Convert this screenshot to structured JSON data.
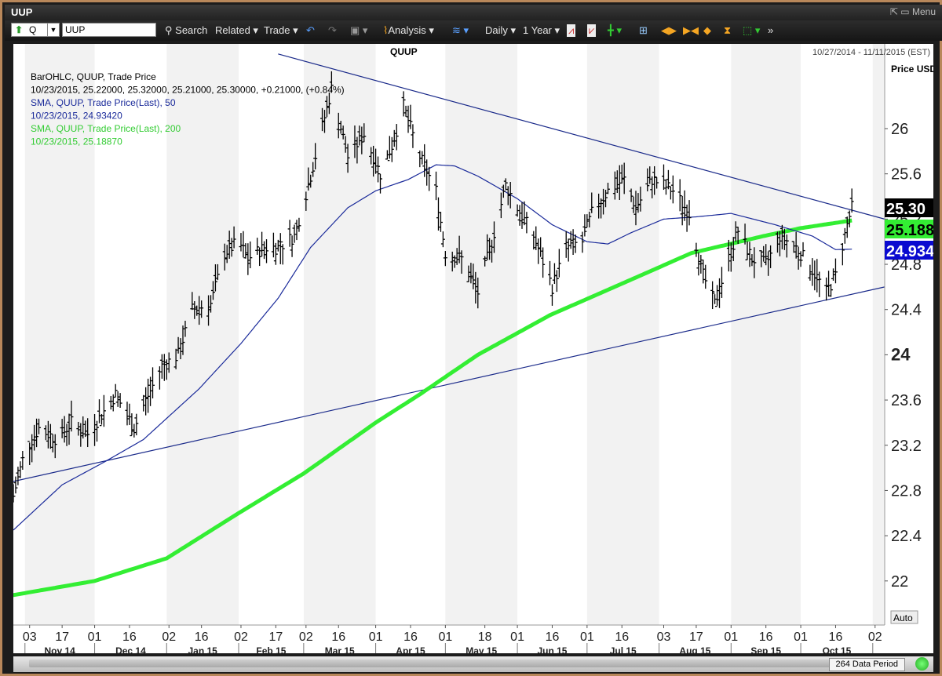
{
  "window": {
    "title": "UUP",
    "menu_label": "Menu"
  },
  "toolbar": {
    "symbol_prefix": "Q",
    "symbol_value": "UUP",
    "search": "Search",
    "related": "Related",
    "trade": "Trade",
    "analysis": "Analysis",
    "interval": "Daily",
    "range": "1 Year"
  },
  "status": {
    "data_period": "264 Data Period"
  },
  "colors": {
    "bars": "#000000",
    "sma50": "#1a2a9a",
    "sma200": "#33ee33",
    "trendline": "#1a2a8a",
    "band": "#f2f2f2"
  },
  "chart_data": {
    "type": "line",
    "title": "QUUP",
    "date_range": "10/27/2014 - 11/11/2015 (EST)",
    "ylabel": "Price USD",
    "auto_label": "Auto",
    "ylim": [
      21.6,
      26.6
    ],
    "yticks": [
      "22",
      "22.4",
      "22.8",
      "23.2",
      "23.6",
      "24",
      "24.4",
      "24.8",
      "25.2",
      "25.6",
      "26"
    ],
    "x_tick_days": [
      "03",
      "17",
      "01",
      "16",
      "02",
      "16",
      "02",
      "17",
      "02",
      "16",
      "01",
      "16",
      "01",
      "18",
      "01",
      "16",
      "01",
      "16",
      "03",
      "17",
      "01",
      "16",
      "01",
      "16",
      "02"
    ],
    "x_month_labels": [
      "Nov 14",
      "Dec 14",
      "Jan 15",
      "Feb 15",
      "Mar 15",
      "Apr 15",
      "May 15",
      "Jun 15",
      "Jul 15",
      "Aug 15",
      "Sep 15",
      "Oct 15"
    ],
    "legend_lines": [
      "BarOHLC, QUUP, Trade Price",
      "10/23/2015, 25.22000, 25.32000, 25.21000, 25.30000, +0.21000, (+0.84%)",
      "SMA, QUUP, Trade Price(Last),  50",
      "10/23/2015, 24.93420",
      "SMA, QUUP, Trade Price(Last),  200",
      "10/23/2015, 25.18870"
    ],
    "price_tags": [
      {
        "label": "25.30",
        "value": 25.3,
        "color": "#000000"
      },
      {
        "label": "25.188",
        "value": 25.188,
        "color": "#33ee33"
      },
      {
        "label": "24.934",
        "value": 24.934,
        "color": "#0a0ad0"
      }
    ],
    "price_anchors": [
      [
        "2014-10-27",
        22.75
      ],
      [
        "2014-11-01",
        23.15
      ],
      [
        "2014-11-07",
        23.35
      ],
      [
        "2014-11-15",
        23.25
      ],
      [
        "2014-11-21",
        23.4
      ],
      [
        "2014-11-28",
        23.3
      ],
      [
        "2014-12-05",
        23.5
      ],
      [
        "2014-12-10",
        23.65
      ],
      [
        "2014-12-18",
        23.35
      ],
      [
        "2014-12-22",
        23.55
      ],
      [
        "2014-12-30",
        23.9
      ],
      [
        "2015-01-06",
        24.0
      ],
      [
        "2015-01-12",
        24.4
      ],
      [
        "2015-01-20",
        24.45
      ],
      [
        "2015-01-26",
        24.9
      ],
      [
        "2015-02-01",
        25.0
      ],
      [
        "2015-02-05",
        24.85
      ],
      [
        "2015-02-12",
        24.95
      ],
      [
        "2015-02-18",
        24.95
      ],
      [
        "2015-02-25",
        25.05
      ],
      [
        "2015-03-03",
        25.5
      ],
      [
        "2015-03-10",
        26.1
      ],
      [
        "2015-03-13",
        26.35
      ],
      [
        "2015-03-20",
        25.75
      ],
      [
        "2015-03-27",
        25.95
      ],
      [
        "2015-04-03",
        25.6
      ],
      [
        "2015-04-08",
        25.85
      ],
      [
        "2015-04-13",
        26.2
      ],
      [
        "2015-04-20",
        25.75
      ],
      [
        "2015-04-27",
        25.45
      ],
      [
        "2015-05-01",
        24.9
      ],
      [
        "2015-05-08",
        24.85
      ],
      [
        "2015-05-15",
        24.55
      ],
      [
        "2015-05-21",
        25.0
      ],
      [
        "2015-05-27",
        25.5
      ],
      [
        "2015-06-01",
        25.3
      ],
      [
        "2015-06-08",
        25.05
      ],
      [
        "2015-06-16",
        24.6
      ],
      [
        "2015-06-22",
        24.95
      ],
      [
        "2015-06-29",
        25.0
      ],
      [
        "2015-07-03",
        25.25
      ],
      [
        "2015-07-10",
        25.45
      ],
      [
        "2015-07-17",
        25.55
      ],
      [
        "2015-07-22",
        25.3
      ],
      [
        "2015-07-29",
        25.55
      ],
      [
        "2015-08-03",
        25.5
      ],
      [
        "2015-08-07",
        25.45
      ],
      [
        "2015-08-14",
        25.25
      ],
      [
        "2015-08-20",
        24.7
      ],
      [
        "2015-08-25",
        24.45
      ],
      [
        "2015-08-31",
        24.85
      ],
      [
        "2015-09-04",
        25.1
      ],
      [
        "2015-09-10",
        24.85
      ],
      [
        "2015-09-16",
        24.8
      ],
      [
        "2015-09-22",
        25.05
      ],
      [
        "2015-09-29",
        24.95
      ],
      [
        "2015-10-06",
        24.75
      ],
      [
        "2015-10-12",
        24.55
      ],
      [
        "2015-10-16",
        24.7
      ],
      [
        "2015-10-21",
        25.15
      ],
      [
        "2015-10-23",
        25.3
      ]
    ],
    "sma50_anchors": [
      [
        "2014-10-27",
        22.45
      ],
      [
        "2014-11-17",
        22.85
      ],
      [
        "2014-12-05",
        23.05
      ],
      [
        "2014-12-22",
        23.25
      ],
      [
        "2015-01-15",
        23.7
      ],
      [
        "2015-02-02",
        24.1
      ],
      [
        "2015-02-18",
        24.5
      ],
      [
        "2015-03-04",
        24.95
      ],
      [
        "2015-03-20",
        25.3
      ],
      [
        "2015-04-01",
        25.45
      ],
      [
        "2015-04-15",
        25.55
      ],
      [
        "2015-04-27",
        25.68
      ],
      [
        "2015-05-05",
        25.67
      ],
      [
        "2015-05-15",
        25.58
      ],
      [
        "2015-06-01",
        25.38
      ],
      [
        "2015-06-16",
        25.15
      ],
      [
        "2015-07-01",
        25.0
      ],
      [
        "2015-07-10",
        24.98
      ],
      [
        "2015-07-20",
        25.08
      ],
      [
        "2015-08-03",
        25.2
      ],
      [
        "2015-08-17",
        25.22
      ],
      [
        "2015-09-01",
        25.25
      ],
      [
        "2015-09-20",
        25.15
      ],
      [
        "2015-10-06",
        25.05
      ],
      [
        "2015-10-16",
        24.93
      ],
      [
        "2015-10-23",
        24.934
      ]
    ],
    "sma200_anchors": [
      [
        "2014-10-20",
        21.85
      ],
      [
        "2014-12-01",
        22.0
      ],
      [
        "2015-01-01",
        22.2
      ],
      [
        "2015-02-01",
        22.6
      ],
      [
        "2015-03-01",
        22.95
      ],
      [
        "2015-04-01",
        23.4
      ],
      [
        "2015-04-20",
        23.65
      ],
      [
        "2015-05-15",
        24.0
      ],
      [
        "2015-06-15",
        24.35
      ],
      [
        "2015-07-15",
        24.62
      ],
      [
        "2015-08-15",
        24.9
      ],
      [
        "2015-09-15",
        25.05
      ],
      [
        "2015-10-01",
        25.12
      ],
      [
        "2015-10-23",
        25.188
      ]
    ],
    "trendlines": [
      {
        "x0": "2014-10-27",
        "y0": 22.88,
        "x1": "2015-11-11",
        "y1": 24.6
      },
      {
        "x0": "2015-02-18",
        "y0": 26.66,
        "x1": "2015-11-11",
        "y1": 25.2
      }
    ]
  }
}
